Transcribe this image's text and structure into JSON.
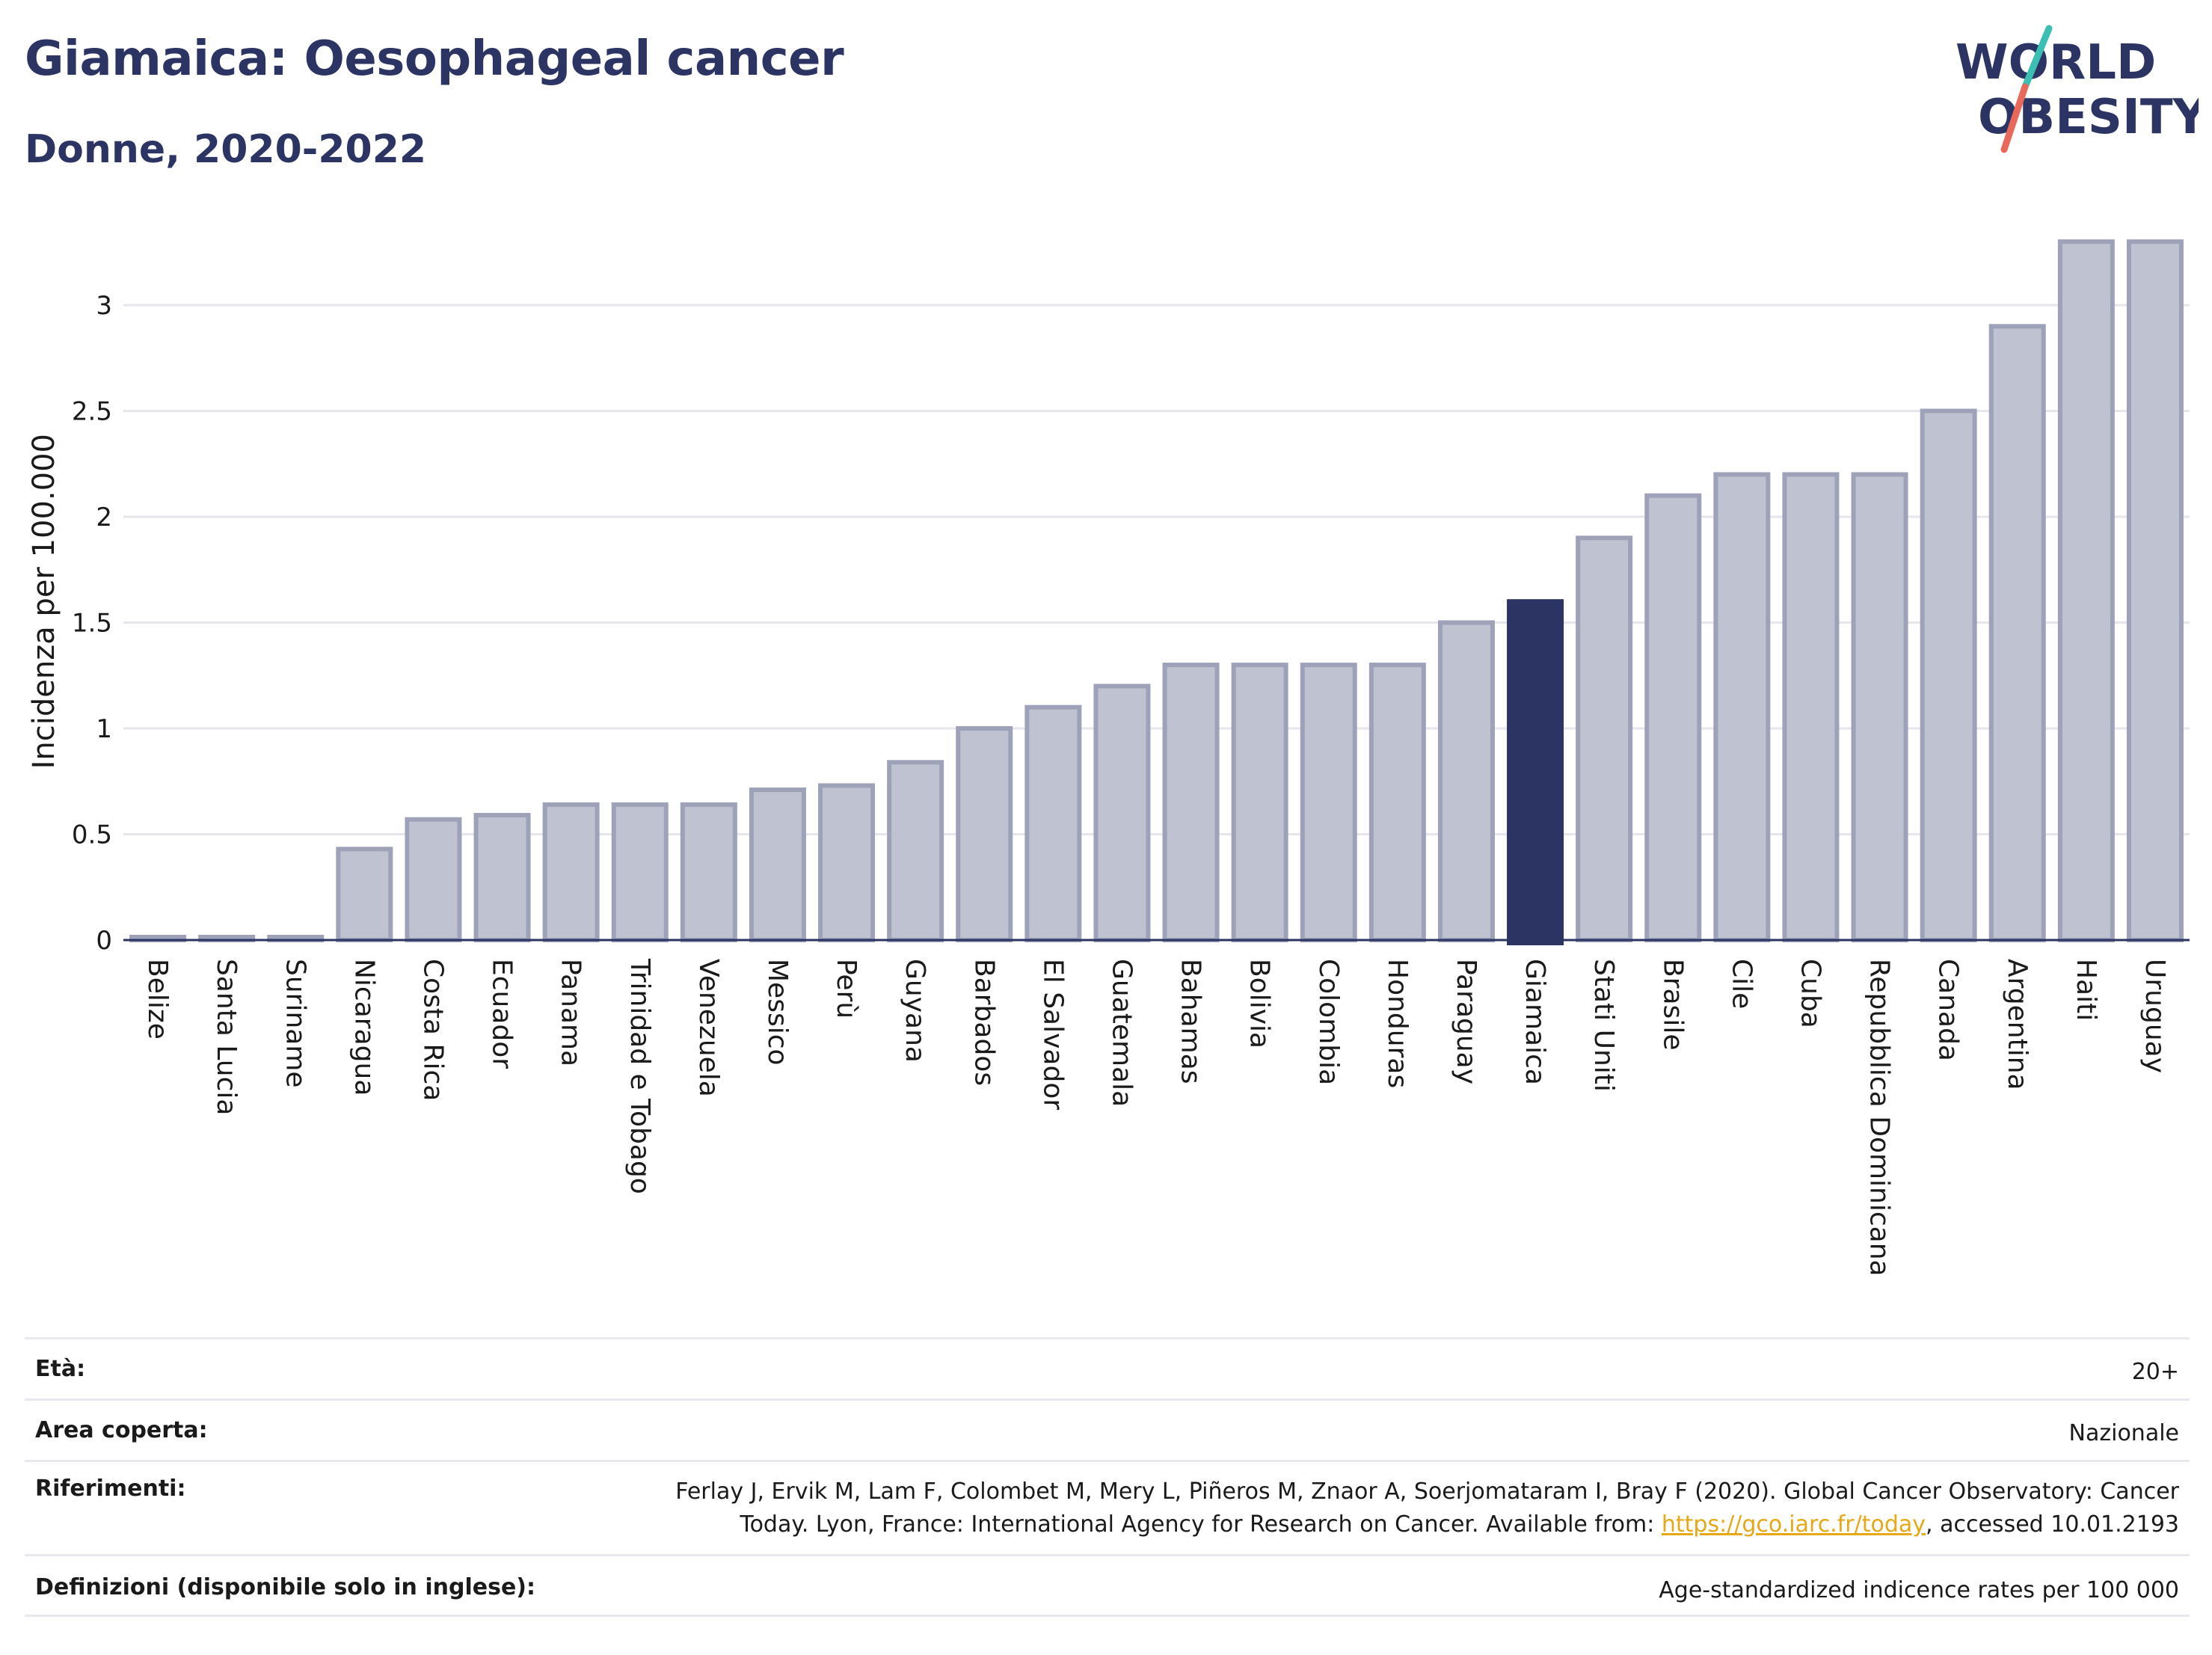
{
  "header": {
    "title": "Giamaica: Oesophageal cancer",
    "subtitle": "Donne, 2020-2022"
  },
  "logo": {
    "line1": "WORLD",
    "line2": "OBESITY"
  },
  "colors": {
    "title": "#2b3463",
    "bar_default": "#bfc2d0",
    "bar_default_stroke": "#9ea2b8",
    "bar_highlight": "#2b3463",
    "grid": "#e6e6ec",
    "logo_slash_top": "#3bbfb2",
    "logo_slash_bottom": "#e8685a"
  },
  "chart_data": {
    "type": "bar",
    "ylabel": "Incidenza per 100.000",
    "ylim": [
      0,
      3.3
    ],
    "yticks": [
      0,
      0.5,
      1,
      1.5,
      2,
      2.5,
      3
    ],
    "ytick_labels": [
      "0",
      "0.5",
      "1",
      "1.5",
      "2",
      "2.5",
      "3"
    ],
    "grid": true,
    "highlight": "Giamaica",
    "categories": [
      "Belize",
      "Santa Lucia",
      "Suriname",
      "Nicaragua",
      "Costa Rica",
      "Ecuador",
      "Panama",
      "Trinidad e Tobago",
      "Venezuela",
      "Messico",
      "Perù",
      "Guyana",
      "Barbados",
      "El Salvador",
      "Guatemala",
      "Bahamas",
      "Bolivia",
      "Colombia",
      "Honduras",
      "Paraguay",
      "Giamaica",
      "Stati Uniti",
      "Brasile",
      "Cile",
      "Cuba",
      "Repubblica Dominicana",
      "Canada",
      "Argentina",
      "Haiti",
      "Uruguay"
    ],
    "values": [
      0.01,
      0.01,
      0.01,
      0.43,
      0.57,
      0.59,
      0.64,
      0.64,
      0.64,
      0.71,
      0.73,
      0.84,
      1.0,
      1.1,
      1.2,
      1.3,
      1.3,
      1.3,
      1.3,
      1.5,
      1.6,
      1.9,
      2.1,
      2.2,
      2.2,
      2.2,
      2.5,
      2.9,
      3.3,
      3.3
    ]
  },
  "meta": {
    "age_label": "Età:",
    "age_value": "20+",
    "area_label": "Area coperta:",
    "area_value": "Nazionale",
    "ref_label": "Riferimenti:",
    "ref_line1": "Ferlay J, Ervik M, Lam F, Colombet M, Mery L, Piñeros M, Znaor A, Soerjomataram I, Bray F (2020). Global Cancer Observatory: Cancer",
    "ref_line2_pre": "Today. Lyon, France: International Agency for Research on Cancer. Available from: ",
    "ref_link": "https://gco.iarc.fr/today",
    "ref_line2_post": ", accessed 10.01.2193",
    "def_label": "Definizioni (disponibile solo in inglese):",
    "def_value": "Age-standardized indicence rates per 100 000"
  }
}
